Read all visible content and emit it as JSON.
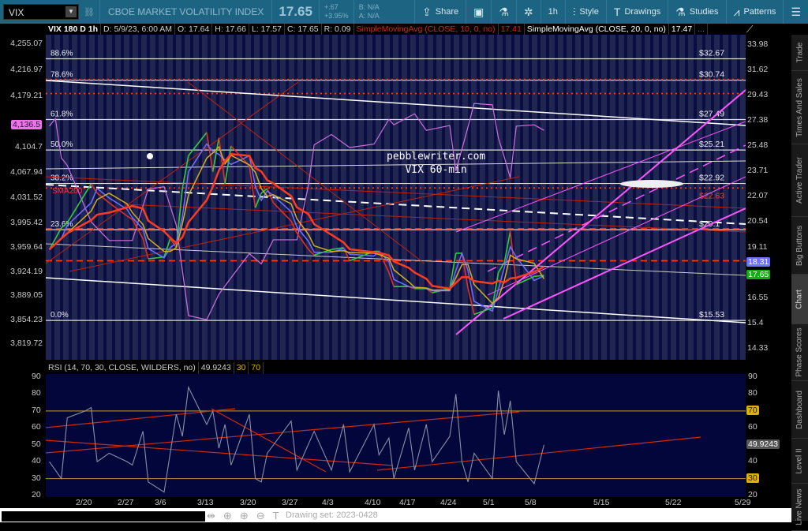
{
  "toolbar": {
    "symbol": "VIX",
    "name": "CBOE MARKET VOLATILITY INDEX",
    "last": "17.65",
    "change": "+.67",
    "change_pct": "+3.95%",
    "bid": "B: N/A",
    "ask": "A: N/A",
    "buttons": [
      {
        "label": "Share",
        "icon": "share-icon"
      },
      {
        "label": "",
        "icon": "alert-icon"
      },
      {
        "label": "",
        "icon": "flask-icon"
      },
      {
        "label": "",
        "icon": "gear-icon"
      },
      {
        "label": "1h",
        "icon": ""
      },
      {
        "label": "Style",
        "icon": "candle-icon"
      },
      {
        "label": "Drawings",
        "icon": "text-t-icon"
      },
      {
        "label": "Studies",
        "icon": "flask-icon"
      },
      {
        "label": "Patterns",
        "icon": "pattern-icon"
      },
      {
        "label": "",
        "icon": "menu-icon"
      }
    ]
  },
  "legend": {
    "title": "VIX 180 D 1h",
    "date": "D: 5/9/23, 6:00 AM",
    "open": "O: 17.64",
    "high": "H: 17.66",
    "low": "L: 17.57",
    "close": "C: 17.65",
    "range": "R: 0.09",
    "sma10": "SimpleMovingAvg (CLOSE, 10, 0, no)",
    "sma10_val": "17.41",
    "sma20": "SimpleMovingAvg (CLOSE, 20, 0, no)",
    "sma20_val": "17.47",
    "more": "..."
  },
  "watermark": {
    "line1": "pebblewriter.com",
    "line2": "VIX 60-min"
  },
  "sma_label": "SMA200",
  "rsi_head": {
    "label": "RSI (14, 70, 30, CLOSE, WILDERS, no)",
    "value": "49.9243",
    "os": "30",
    "ob": "70"
  },
  "sidebar": [
    "Trade",
    "Times And Sales",
    "Active Trader",
    "Big Buttons",
    "Chart",
    "Phase Scores",
    "Dashboard",
    "Level II",
    "Live News"
  ],
  "sidebar_active": "Chart",
  "bottom": {
    "drawing_set": "Drawing set: 2023-0428"
  },
  "colors": {
    "toolbar": "#1c6482",
    "price_up": "#2ecc40",
    "price_down": "#e03020",
    "sma10": "#ff3b1f",
    "sma20": "#d0b020",
    "sma_blue": "#7070ff",
    "spx": "#d070e0",
    "channel": "#ff55ff",
    "rsi": "#8890a8"
  },
  "chart_data": {
    "type": "line",
    "left_axis_ticks": [
      "4,255.07",
      "4,216.97",
      "4,179.21",
      "4,104.7",
      "4,067.94",
      "4,031.52",
      "3,995.42",
      "3,959.64",
      "3,924.19",
      "3,889.05",
      "3,854.23",
      "3,819.72"
    ],
    "left_tag": "4,136.5",
    "right_axis_ticks": [
      "33.98",
      "31.62",
      "29.43",
      "27.38",
      "25.48",
      "23.71",
      "22.07",
      "20.54",
      "19.11",
      "16.55",
      "15.4",
      "14.33"
    ],
    "right_tags": {
      "sma": "18.31",
      "last": "17.65"
    },
    "x_ticks": [
      "2/20",
      "2/27",
      "3/6",
      "3/13",
      "3/20",
      "3/27",
      "4/3",
      "4/10",
      "4/17",
      "4/24",
      "5/1",
      "5/8",
      "5/15",
      "5/22",
      "5/29"
    ],
    "fib_levels": [
      {
        "pct": "88.6%",
        "price": "$32.67",
        "v": 32.67
      },
      {
        "pct": "78.6%",
        "price": "$30.74",
        "v": 30.74
      },
      {
        "pct": "61.8%",
        "price": "$27.49",
        "v": 27.49
      },
      {
        "pct": "50.0%",
        "price": "$25.21",
        "v": 25.21
      },
      {
        "pct": "38.2%",
        "price": "$22.92",
        "v": 22.92
      },
      {
        "pct": "23.6%",
        "price": "$20.1",
        "v": 20.1
      },
      {
        "pct": "0.0%",
        "price": "$15.53",
        "v": 15.53
      }
    ],
    "red_level_label": "$22.63",
    "vix_series": [
      [
        "2/14",
        19.0
      ],
      [
        "2/16",
        20.2
      ],
      [
        "2/17",
        20.5
      ],
      [
        "2/21",
        22.9
      ],
      [
        "2/22",
        22.3
      ],
      [
        "2/24",
        21.7
      ],
      [
        "2/27",
        20.9
      ],
      [
        "2/28",
        20.7
      ],
      [
        "3/2",
        19.6
      ],
      [
        "3/3",
        18.5
      ],
      [
        "3/6",
        18.6
      ],
      [
        "3/7",
        19.6
      ],
      [
        "3/8",
        19.1
      ],
      [
        "3/9",
        22.6
      ],
      [
        "3/10",
        24.8
      ],
      [
        "3/13",
        26.5
      ],
      [
        "3/14",
        23.7
      ],
      [
        "3/15",
        26.1
      ],
      [
        "3/16",
        22.9
      ],
      [
        "3/17",
        25.5
      ],
      [
        "3/20",
        24.1
      ],
      [
        "3/21",
        21.4
      ],
      [
        "3/22",
        22.3
      ],
      [
        "3/23",
        22.6
      ],
      [
        "3/24",
        21.7
      ],
      [
        "3/27",
        20.6
      ],
      [
        "3/28",
        19.9
      ],
      [
        "3/30",
        19.0
      ],
      [
        "3/31",
        18.7
      ],
      [
        "4/3",
        19.0
      ],
      [
        "4/5",
        19.1
      ],
      [
        "4/6",
        18.4
      ],
      [
        "4/10",
        18.9
      ],
      [
        "4/11",
        18.9
      ],
      [
        "4/13",
        17.8
      ],
      [
        "4/14",
        17.1
      ],
      [
        "4/17",
        17.1
      ],
      [
        "4/18",
        17.0
      ],
      [
        "4/20",
        17.0
      ],
      [
        "4/21",
        16.8
      ],
      [
        "4/24",
        17.0
      ],
      [
        "4/25",
        18.8
      ],
      [
        "4/26",
        18.8
      ],
      [
        "4/27",
        17.0
      ],
      [
        "4/28",
        15.8
      ],
      [
        "5/1",
        16.1
      ],
      [
        "5/2",
        17.8
      ],
      [
        "5/3",
        18.3
      ],
      [
        "5/4",
        20.0
      ],
      [
        "5/5",
        17.2
      ],
      [
        "5/8",
        17.6
      ],
      [
        "5/9",
        17.65
      ]
    ],
    "spx_series": [
      [
        "2/14",
        4136
      ],
      [
        "2/15",
        4147
      ],
      [
        "2/16",
        4090
      ],
      [
        "2/17",
        4079
      ],
      [
        "2/21",
        3997
      ],
      [
        "2/24",
        3970
      ],
      [
        "2/28",
        3970
      ],
      [
        "3/3",
        4045
      ],
      [
        "3/6",
        4048
      ],
      [
        "3/8",
        3992
      ],
      [
        "3/10",
        3861
      ],
      [
        "3/13",
        3855
      ],
      [
        "3/15",
        3892
      ],
      [
        "3/17",
        3916
      ],
      [
        "3/20",
        3951
      ],
      [
        "3/22",
        3936
      ],
      [
        "3/24",
        3971
      ],
      [
        "3/28",
        3971
      ],
      [
        "3/30",
        4050
      ],
      [
        "3/31",
        4109
      ],
      [
        "4/3",
        4124
      ],
      [
        "4/6",
        4105
      ],
      [
        "4/10",
        4110
      ],
      [
        "4/13",
        4146
      ],
      [
        "4/14",
        4138
      ],
      [
        "4/18",
        4154
      ],
      [
        "4/20",
        4130
      ],
      [
        "4/24",
        4137
      ],
      [
        "4/25",
        4071
      ],
      [
        "4/27",
        4135
      ],
      [
        "4/28",
        4169
      ],
      [
        "5/1",
        4167
      ],
      [
        "5/2",
        4119
      ],
      [
        "5/3",
        4091
      ],
      [
        "5/4",
        4061
      ],
      [
        "5/5",
        4136
      ],
      [
        "5/8",
        4138
      ],
      [
        "5/9",
        4130
      ]
    ],
    "rsi_series": [
      [
        "2/14",
        40
      ],
      [
        "2/16",
        30
      ],
      [
        "2/17",
        66
      ],
      [
        "2/20",
        70
      ],
      [
        "2/21",
        72
      ],
      [
        "2/22",
        40
      ],
      [
        "2/24",
        45
      ],
      [
        "2/27",
        40
      ],
      [
        "2/28",
        38
      ],
      [
        "3/2",
        58
      ],
      [
        "3/3",
        28
      ],
      [
        "3/6",
        22
      ],
      [
        "3/7",
        45
      ],
      [
        "3/8",
        68
      ],
      [
        "3/9",
        55
      ],
      [
        "3/10",
        84
      ],
      [
        "3/13",
        62
      ],
      [
        "3/14",
        70
      ],
      [
        "3/15",
        48
      ],
      [
        "3/16",
        62
      ],
      [
        "3/17",
        38
      ],
      [
        "3/20",
        68
      ],
      [
        "3/21",
        30
      ],
      [
        "3/22",
        28
      ],
      [
        "3/23",
        45
      ],
      [
        "3/27",
        64
      ],
      [
        "3/28",
        35
      ],
      [
        "3/31",
        58
      ],
      [
        "4/3",
        35
      ],
      [
        "4/5",
        62
      ],
      [
        "4/6",
        34
      ],
      [
        "4/10",
        62
      ],
      [
        "4/11",
        44
      ],
      [
        "4/13",
        54
      ],
      [
        "4/14",
        30
      ],
      [
        "4/17",
        60
      ],
      [
        "4/18",
        35
      ],
      [
        "4/20",
        62
      ],
      [
        "4/21",
        40
      ],
      [
        "4/24",
        55
      ],
      [
        "4/25",
        80
      ],
      [
        "4/26",
        40
      ],
      [
        "4/27",
        28
      ],
      [
        "4/28",
        45
      ],
      [
        "5/1",
        30
      ],
      [
        "5/2",
        82
      ],
      [
        "5/3",
        56
      ],
      [
        "5/4",
        76
      ],
      [
        "5/5",
        40
      ],
      [
        "5/8",
        27
      ],
      [
        "5/9",
        50
      ]
    ],
    "rsi_ylim": [
      20,
      90
    ],
    "rsi_levels": [
      30,
      70
    ],
    "rsi_ticks": [
      "90",
      "80",
      "70",
      "60",
      "50",
      "40",
      "30",
      "20"
    ],
    "yscale_right": "log"
  }
}
